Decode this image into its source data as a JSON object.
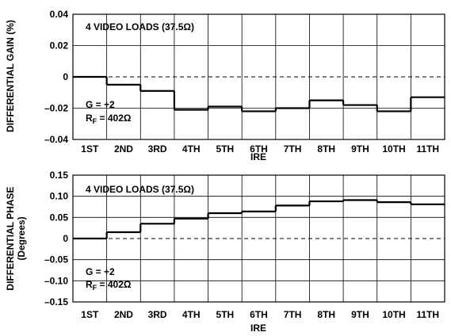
{
  "chart_data": [
    {
      "type": "line",
      "step": true,
      "categories": [
        "1ST",
        "2ND",
        "3RD",
        "4TH",
        "5TH",
        "6TH",
        "7TH",
        "8TH",
        "9TH",
        "10TH",
        "11TH"
      ],
      "values": [
        0.0,
        -0.005,
        -0.009,
        -0.021,
        -0.019,
        -0.022,
        -0.02,
        -0.015,
        -0.018,
        -0.022,
        -0.013
      ],
      "xlabel": "IRE",
      "ylabel": "DIFFERENTIAL GAIN (%)",
      "ylim": [
        -0.04,
        0.04
      ],
      "yticks": [
        -0.04,
        -0.02,
        0,
        0.02,
        0.04
      ],
      "ytick_labels": [
        "–0.04",
        "–0.02",
        "0",
        "0.02",
        "0.04"
      ],
      "grid": true,
      "reference_line": {
        "value": 0,
        "style": "dashed"
      },
      "annotations": {
        "loads": "4 VIDEO LOADS (37.5Ω)",
        "gain": "G = +2",
        "rf_main": "R",
        "rf_sub": "F",
        "rf_value": " = 402Ω"
      }
    },
    {
      "type": "line",
      "step": true,
      "categories": [
        "1ST",
        "2ND",
        "3RD",
        "4TH",
        "5TH",
        "6TH",
        "7TH",
        "8TH",
        "9TH",
        "10TH",
        "11TH"
      ],
      "values": [
        0.0,
        0.015,
        0.035,
        0.047,
        0.06,
        0.064,
        0.078,
        0.088,
        0.091,
        0.086,
        0.081
      ],
      "xlabel": "IRE",
      "ylabel": "DIFFERENTIAL PHASE",
      "ylabel2": "(Degrees)",
      "ylim": [
        -0.15,
        0.15
      ],
      "yticks": [
        -0.15,
        -0.1,
        -0.05,
        0,
        0.05,
        0.1,
        0.15
      ],
      "ytick_labels": [
        "–0.15",
        "–0.10",
        "–0.05",
        "0",
        "0.05",
        "0.10",
        "0.15"
      ],
      "grid": true,
      "reference_line": {
        "value": 0,
        "style": "dashed"
      },
      "annotations": {
        "loads": "4 VIDEO LOADS (37.5Ω)",
        "gain": "G = +2",
        "rf_main": "R",
        "rf_sub": "F",
        "rf_value": " = 402Ω"
      }
    }
  ]
}
